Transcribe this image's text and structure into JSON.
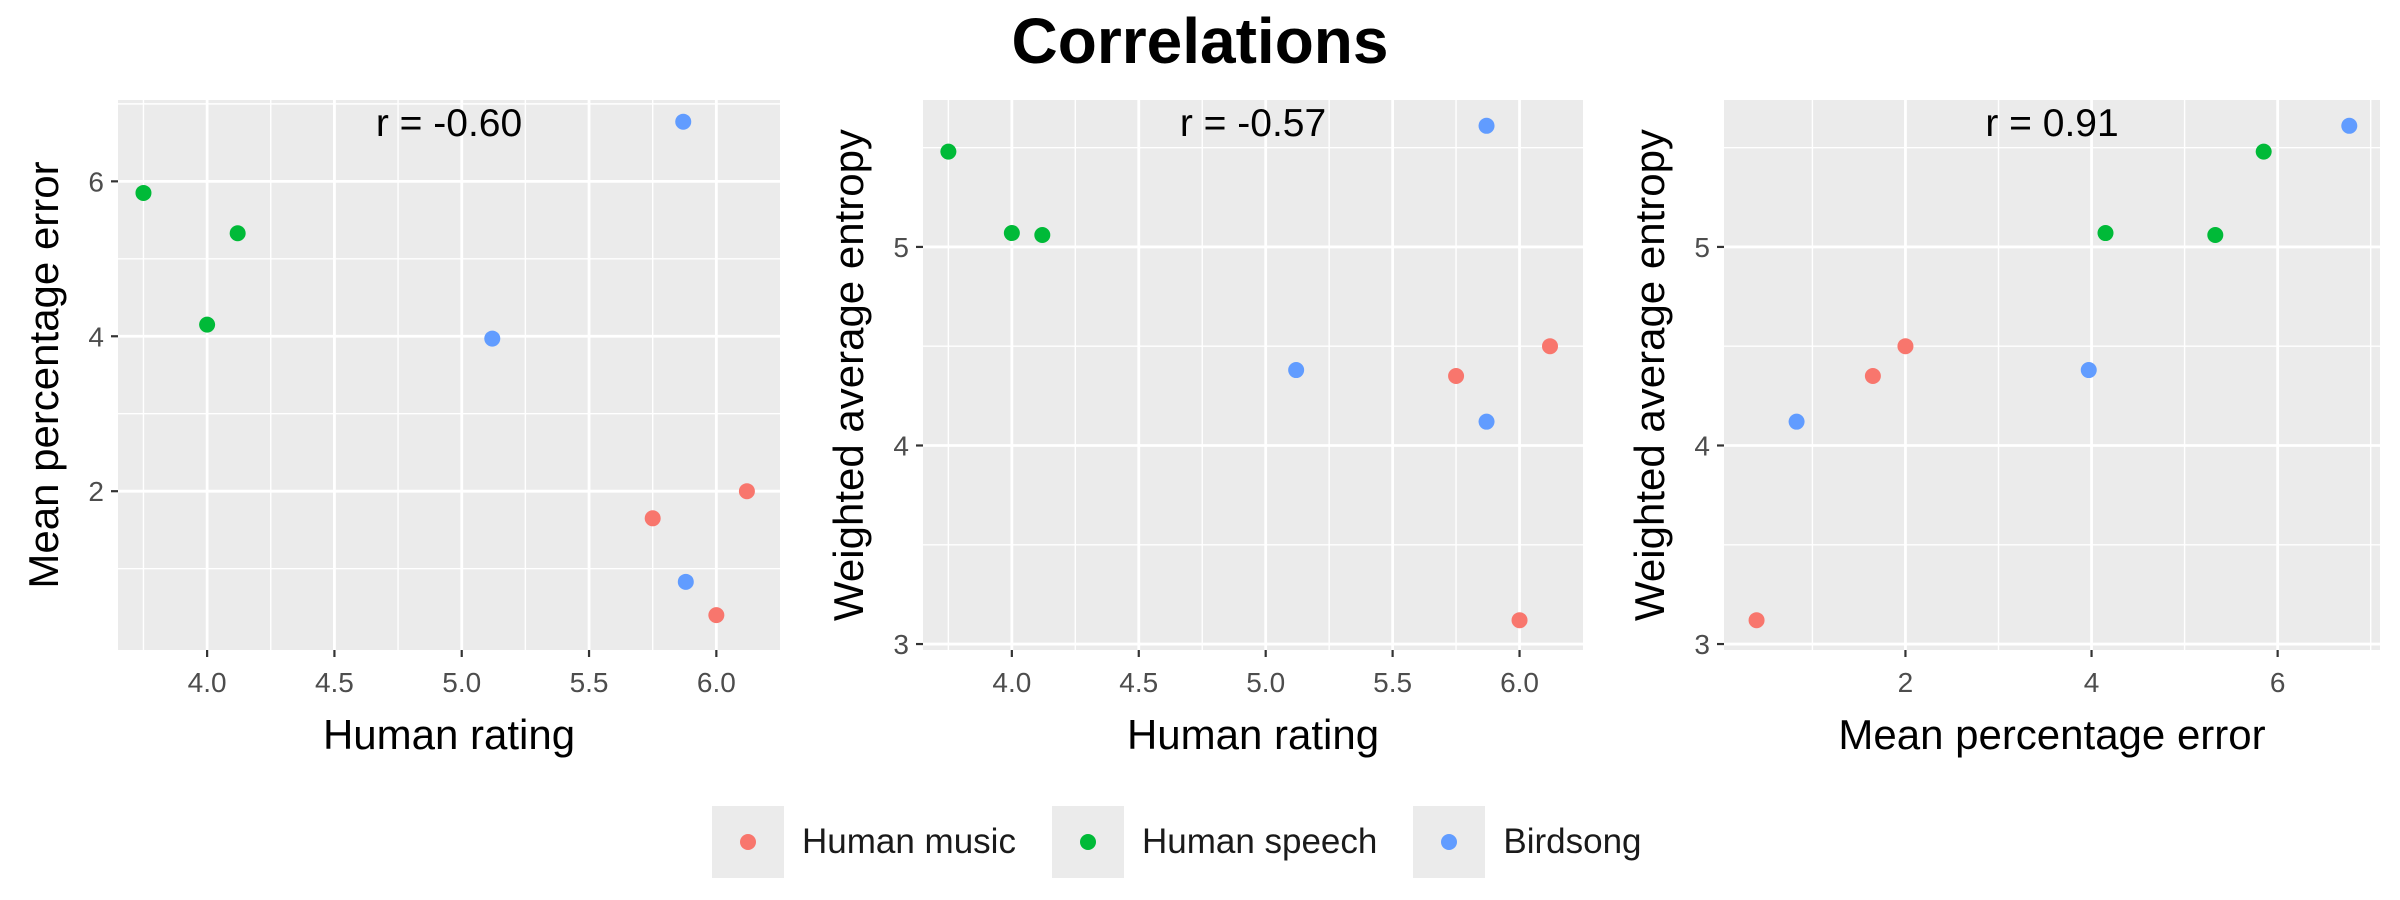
{
  "title": "Correlations",
  "colors": {
    "Human music": "#F8766D",
    "Human speech": "#00BA38",
    "Birdsong": "#619CFF",
    "panel_bg": "#ebebeb",
    "grid": "#ffffff"
  },
  "legend": [
    "Human music",
    "Human speech",
    "Birdsong"
  ],
  "chart_data": [
    {
      "type": "scatter",
      "title": "",
      "annotation": "r = -0.60",
      "xlabel": "Human rating",
      "ylabel": "Mean percentage error",
      "xlim": [
        3.65,
        6.25
      ],
      "ylim": [
        -0.05,
        7.05
      ],
      "xticks": [
        4.0,
        4.5,
        5.0,
        5.5,
        6.0
      ],
      "xtick_labels": [
        "4.0",
        "4.5",
        "5.0",
        "5.5",
        "6.0"
      ],
      "yticks": [
        2,
        4,
        6
      ],
      "ytick_labels": [
        "2",
        "4",
        "6"
      ],
      "grid": true,
      "series": [
        {
          "name": "Human music",
          "points": [
            [
              5.75,
              1.65
            ],
            [
              6.0,
              0.4
            ],
            [
              6.12,
              2.0
            ]
          ]
        },
        {
          "name": "Human speech",
          "points": [
            [
              3.75,
              5.85
            ],
            [
              4.0,
              4.15
            ],
            [
              4.12,
              5.33
            ]
          ]
        },
        {
          "name": "Birdsong",
          "points": [
            [
              5.12,
              3.97
            ],
            [
              5.87,
              6.77
            ],
            [
              5.88,
              0.83
            ]
          ]
        }
      ]
    },
    {
      "type": "scatter",
      "title": "",
      "annotation": "r = -0.57",
      "xlabel": "Human rating",
      "ylabel": "Weighted average entropy",
      "xlim": [
        3.65,
        6.25
      ],
      "ylim": [
        2.97,
        5.74
      ],
      "xticks": [
        4.0,
        4.5,
        5.0,
        5.5,
        6.0
      ],
      "xtick_labels": [
        "4.0",
        "4.5",
        "5.0",
        "5.5",
        "6.0"
      ],
      "yticks": [
        3,
        4,
        5
      ],
      "ytick_labels": [
        "3",
        "4",
        "5"
      ],
      "grid": true,
      "series": [
        {
          "name": "Human music",
          "points": [
            [
              5.75,
              4.35
            ],
            [
              6.0,
              3.12
            ],
            [
              6.12,
              4.5
            ]
          ]
        },
        {
          "name": "Human speech",
          "points": [
            [
              3.75,
              5.48
            ],
            [
              4.0,
              5.07
            ],
            [
              4.12,
              5.06
            ]
          ]
        },
        {
          "name": "Birdsong",
          "points": [
            [
              5.12,
              4.38
            ],
            [
              5.87,
              4.12
            ],
            [
              5.87,
              5.61
            ]
          ]
        }
      ]
    },
    {
      "type": "scatter",
      "title": "",
      "annotation": "r = 0.91",
      "xlabel": "Mean percentage error",
      "ylabel": "Weighted average entropy",
      "xlim": [
        0.05,
        7.1
      ],
      "ylim": [
        2.97,
        5.74
      ],
      "xticks": [
        2,
        4,
        6
      ],
      "xtick_labels": [
        "2",
        "4",
        "6"
      ],
      "yticks": [
        3,
        4,
        5
      ],
      "ytick_labels": [
        "3",
        "4",
        "5"
      ],
      "grid": true,
      "series": [
        {
          "name": "Human music",
          "points": [
            [
              0.4,
              3.12
            ],
            [
              1.65,
              4.35
            ],
            [
              2.0,
              4.5
            ]
          ]
        },
        {
          "name": "Human speech",
          "points": [
            [
              4.15,
              5.07
            ],
            [
              5.33,
              5.06
            ],
            [
              5.85,
              5.48
            ]
          ]
        },
        {
          "name": "Birdsong",
          "points": [
            [
              0.83,
              4.12
            ],
            [
              3.97,
              4.38
            ],
            [
              6.77,
              5.61
            ]
          ]
        }
      ]
    }
  ]
}
